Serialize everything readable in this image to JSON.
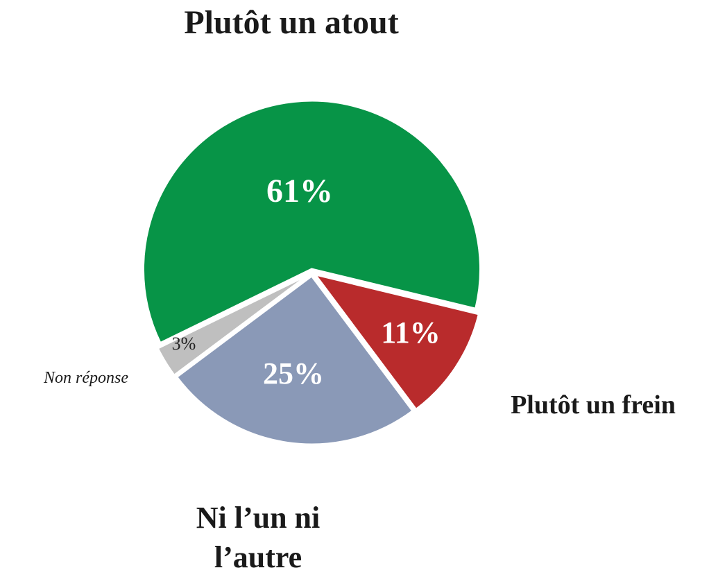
{
  "chart_data": {
    "type": "pie",
    "categories": [
      "Plutôt un atout",
      "Plutôt un frein",
      "Ni l’un ni l’autre",
      "Non réponse"
    ],
    "values": [
      61,
      11,
      25,
      3
    ],
    "value_labels": [
      "61%",
      "11%",
      "25%",
      "3%"
    ],
    "colors": [
      "#079447",
      "#b92b2c",
      "#8a99b7",
      "#bfbfbf"
    ]
  }
}
